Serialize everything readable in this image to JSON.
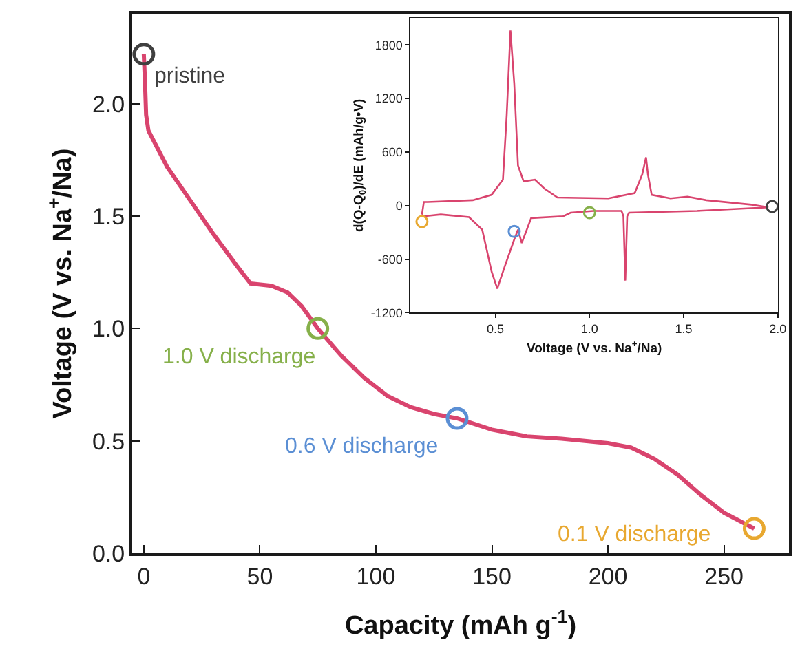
{
  "chart_data": [
    {
      "type": "line",
      "xlabel": "Capacity (mAh g$^{-1}$)",
      "ylabel": "Voltage (V vs. Na$^{+}$/Na)",
      "xlim": [
        -5,
        278
      ],
      "ylim": [
        0,
        2.4
      ],
      "xticks": [
        0,
        50,
        100,
        150,
        200,
        250
      ],
      "yticks": [
        {
          "value": 0,
          "label": "0.0"
        },
        0.5,
        {
          "value": 1,
          "label": "1.0"
        },
        1.5,
        {
          "value": 2,
          "label": "2.0"
        }
      ],
      "series": [
        {
          "color": "#d9446e",
          "x": [
            0,
            0.5,
            1,
            2,
            5,
            10,
            20,
            30,
            40,
            46,
            55,
            62,
            68,
            75,
            85,
            95,
            105,
            115,
            125,
            135,
            150,
            165,
            180,
            200,
            210,
            220,
            230,
            240,
            250,
            263
          ],
          "values": [
            2.22,
            2.1,
            1.95,
            1.88,
            1.82,
            1.72,
            1.57,
            1.42,
            1.28,
            1.2,
            1.19,
            1.16,
            1.1,
            1.0,
            0.88,
            0.78,
            0.7,
            0.65,
            0.62,
            0.6,
            0.55,
            0.52,
            0.51,
            0.49,
            0.47,
            0.42,
            0.35,
            0.26,
            0.18,
            0.11
          ]
        },
        {
          "type": "scatter",
          "marker": "circle",
          "name": "pristine",
          "color": "#404040",
          "x": [
            0
          ],
          "values": [
            2.22
          ]
        },
        {
          "type": "scatter",
          "marker": "circle",
          "name": "1.0 V discharge",
          "color": "#86b04a",
          "x": [
            75
          ],
          "values": [
            1.0
          ]
        },
        {
          "type": "scatter",
          "marker": "circle",
          "name": "0.6 V discharge",
          "color": "#5b8fd4",
          "x": [
            135
          ],
          "values": [
            0.6
          ]
        },
        {
          "type": "scatter",
          "marker": "circle",
          "name": "0.1 V discharge",
          "color": "#e8a830",
          "x": [
            263
          ],
          "values": [
            0.11
          ]
        }
      ]
    },
    {
      "type": "line",
      "xlabel": "Voltage (V vs. Na$^{+}$/Na)",
      "ylabel": "d(Q-Q$_{0}$)/dE (mAh/g•V)",
      "xlim": [
        0.05,
        2.0
      ],
      "ylim": [
        -1200,
        2100
      ],
      "xticks": [
        0.5,
        {
          "value": 1,
          "label": "1.0"
        },
        1.5,
        {
          "value": 2,
          "label": "2.0"
        }
      ],
      "yticks": [
        -1200,
        -600,
        0,
        600,
        1200,
        1800
      ],
      "series": [
        {
          "color": "#d9446e",
          "x": [
            1.95,
            1.57,
            1.21,
            1.2,
            1.19,
            1.18,
            1.17,
            1.02,
            0.9,
            0.86,
            0.69,
            0.64,
            0.62,
            0.6,
            0.55,
            0.51,
            0.48,
            0.43,
            0.36,
            0.21,
            0.12,
            0.11
          ],
          "values": [
            -20,
            -60,
            -80,
            -120,
            -840,
            -120,
            -60,
            -60,
            -80,
            -120,
            -140,
            -420,
            -270,
            -380,
            -680,
            -930,
            -740,
            -270,
            -130,
            -100,
            -120,
            -100
          ]
        },
        {
          "color": "#d9446e",
          "x": [
            0.11,
            0.12,
            0.14,
            0.38,
            0.48,
            0.54,
            0.56,
            0.58,
            0.6,
            0.62,
            0.65,
            0.71,
            0.76,
            0.83,
            1.1,
            1.24,
            1.28,
            1.3,
            1.31,
            1.33,
            1.43,
            1.52,
            1.62,
            1.86,
            1.95
          ],
          "values": [
            -100,
            40,
            40,
            60,
            120,
            290,
            1010,
            1960,
            1370,
            450,
            270,
            290,
            190,
            90,
            80,
            140,
            350,
            540,
            350,
            120,
            80,
            100,
            60,
            10,
            -20
          ]
        },
        {
          "type": "scatter",
          "marker": "circle",
          "color": "#e8a830",
          "x": [
            0.11
          ],
          "values": [
            -180
          ]
        },
        {
          "type": "scatter",
          "marker": "circle",
          "color": "#5b8fd4",
          "x": [
            0.6
          ],
          "values": [
            -290
          ]
        },
        {
          "type": "scatter",
          "marker": "circle",
          "color": "#86b04a",
          "x": [
            1.0
          ],
          "values": [
            -80
          ]
        },
        {
          "type": "scatter",
          "marker": "circle",
          "color": "#404040",
          "x": [
            1.97
          ],
          "values": [
            -10
          ]
        }
      ]
    }
  ]
}
